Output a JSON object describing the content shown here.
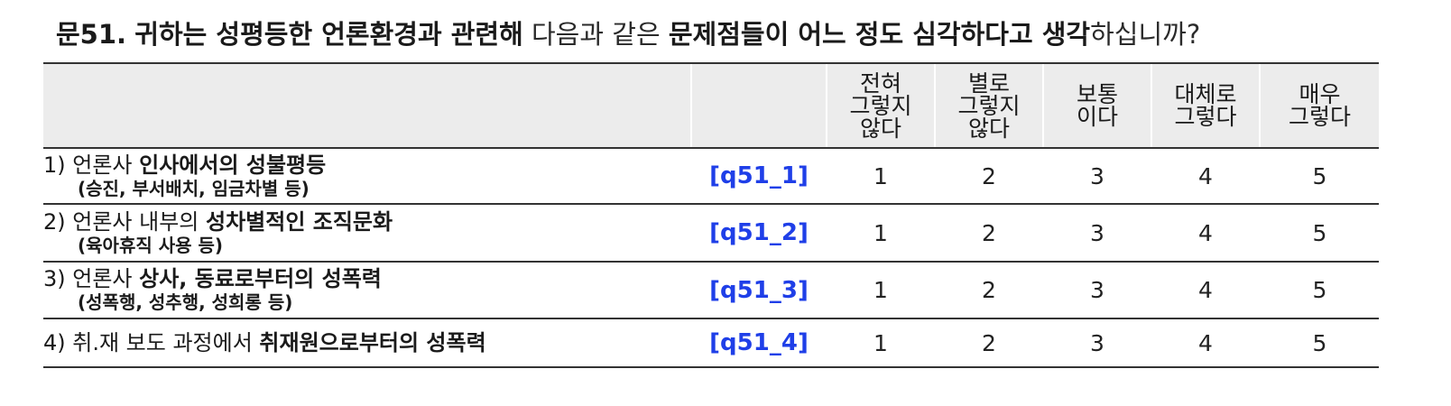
{
  "question": {
    "number": "문51.",
    "part1": "귀하는 성평등한 언론환경과 관련해",
    "part2": "다음과 같은",
    "part3": "문제점들이 어느 정도 심각하다고 생각",
    "part4": "하십니까?"
  },
  "headers": [
    [
      "전혀",
      "그렇지",
      "않다"
    ],
    [
      "별로",
      "그렇지",
      "않다"
    ],
    [
      "보통",
      "이다"
    ],
    [
      "대체로",
      "그렇다"
    ],
    [
      "매우",
      "그렇다"
    ]
  ],
  "items": [
    {
      "prefix": "1) 언론사 ",
      "bold": "인사에서의 성불평등",
      "sub": "(승진, 부서배치, 임금차별 등)",
      "code": "[q51_1]",
      "values": [
        "1",
        "2",
        "3",
        "4",
        "5"
      ]
    },
    {
      "prefix": "2) 언론사 내부의 ",
      "bold": "성차별적인 조직문화",
      "sub": "(육아휴직 사용 등)",
      "code": "[q51_2]",
      "values": [
        "1",
        "2",
        "3",
        "4",
        "5"
      ]
    },
    {
      "prefix": "3) 언론사 ",
      "bold": "상사, 동료로부터의 성폭력",
      "sub": "(성폭행, 성추행, 성희롱 등)",
      "code": "[q51_3]",
      "values": [
        "1",
        "2",
        "3",
        "4",
        "5"
      ]
    },
    {
      "prefix": "4) 취.재 보도 과정에서 ",
      "bold": "취재원으로부터의 성폭력",
      "sub": "",
      "code": "[q51_4]",
      "values": [
        "1",
        "2",
        "3",
        "4",
        "5"
      ]
    }
  ],
  "colors": {
    "code_text": "#1f3fe8",
    "header_bg": "#ececec",
    "rule": "#333333"
  }
}
